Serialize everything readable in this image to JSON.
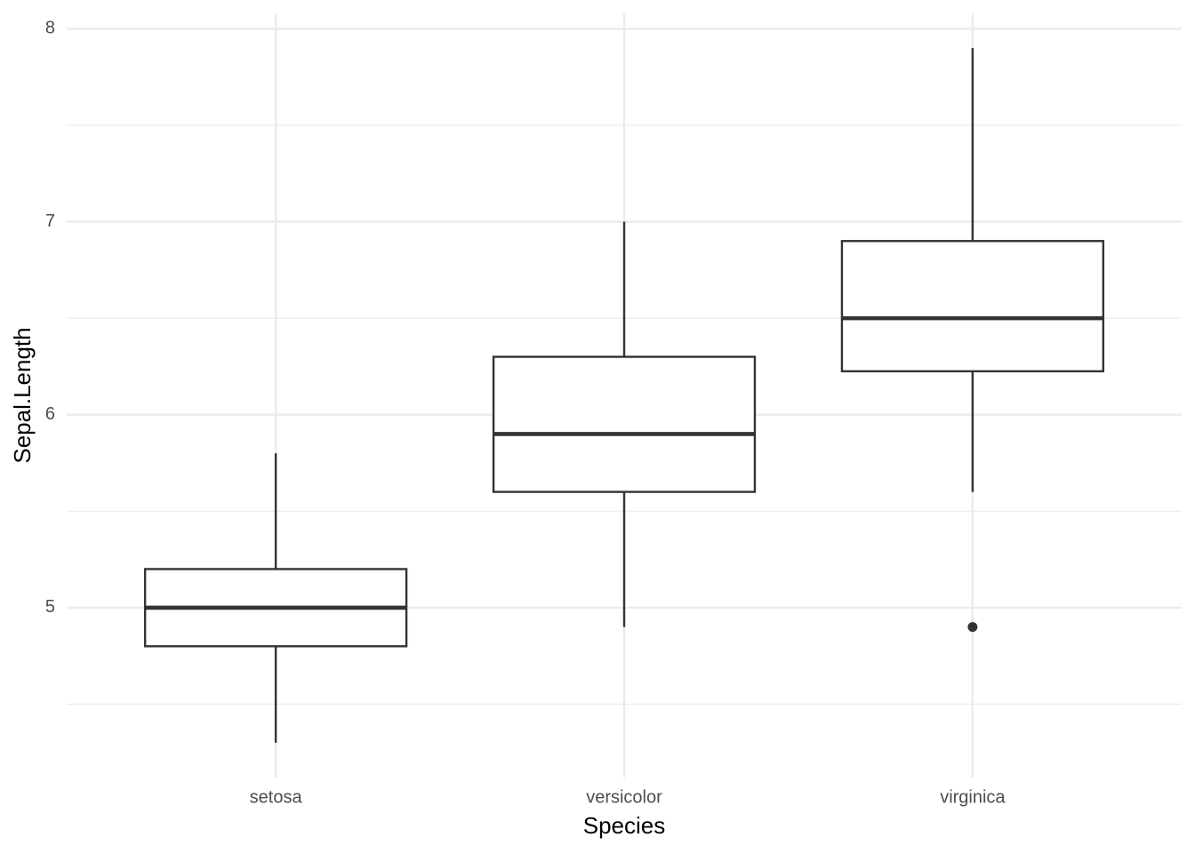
{
  "chart_data": {
    "type": "boxplot",
    "x_label": "Species",
    "y_label": "Sepal.Length",
    "categories": [
      "setosa",
      "versicolor",
      "virginica"
    ],
    "boxes": [
      {
        "min": 4.3,
        "q1": 4.8,
        "median": 5.0,
        "q3": 5.2,
        "max": 5.8,
        "outliers": []
      },
      {
        "min": 4.9,
        "q1": 5.6,
        "median": 5.9,
        "q3": 6.3,
        "max": 7.0,
        "outliers": []
      },
      {
        "min": 5.6,
        "q1": 6.225,
        "median": 6.5,
        "q3": 6.9,
        "max": 7.9,
        "outliers": [
          4.9
        ]
      }
    ],
    "color": "#333333",
    "ylim": [
      4.12,
      8.08
    ],
    "yticks": [
      5,
      6,
      7,
      8
    ],
    "yminorticks": [
      4.5,
      5.5,
      6.5,
      7.5
    ],
    "grid": true,
    "grid_color": "#ebebeb"
  }
}
